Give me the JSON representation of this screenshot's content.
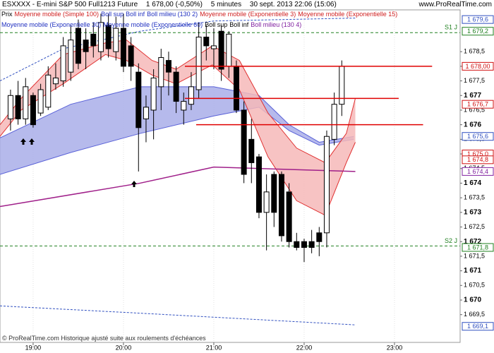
{
  "chart_data": {
    "type": "candlestick",
    "header": {
      "instrument": "ESXXXX - E-mini S&P 500 Full1213 Future",
      "price": "1 678,00 (-0,50%)",
      "timeframe": "5 minutes",
      "timestamp": "30 sept. 2013 22:06 (15:06)",
      "site": "www.ProRealTime.com"
    },
    "footer": "© ProRealTime.com Historique ajusté suite aux roulements d'échéances",
    "legend": [
      [
        {
          "text": "Prix",
          "color": "#000000"
        },
        {
          "text": "Moyenne mobile (Simple 100)",
          "color": "#d02020"
        },
        {
          "text": "Boll sup",
          "color": "#2030c0"
        },
        {
          "text": "Boll inf",
          "color": "#2030c0"
        },
        {
          "text": "Boll milieu (130 2)",
          "color": "#2030c0"
        },
        {
          "text": "Moyenne mobile (Exponentielle 3)",
          "color": "#d02020"
        },
        {
          "text": "Moyenne mobile (Exponentielle 15)",
          "color": "#d02020"
        }
      ],
      [
        {
          "text": "Moyenne mobile (Exponentielle 30)",
          "color": "#2030c0"
        },
        {
          "text": "Moyenne mobile (Exponentielle 60)",
          "color": "#2030c0"
        },
        {
          "text": "Boll sup",
          "color": "#000000"
        },
        {
          "text": "Boll inf",
          "color": "#000000"
        },
        {
          "text": "Boll milieu (130 4)",
          "color": "#8020a0"
        }
      ]
    ],
    "xlim": [
      -22,
      283.6
    ],
    "xticks": [
      {
        "value": 0,
        "label": "19:00"
      },
      {
        "value": 60,
        "label": "20:00"
      },
      {
        "value": 120,
        "label": "21:00"
      },
      {
        "value": 180,
        "label": "22:00"
      },
      {
        "value": 240,
        "label": "23:00"
      }
    ],
    "ylim": [
      1668.55,
      1679.93
    ],
    "yticks": [
      {
        "value": 1669.5,
        "label": "1 669,5"
      },
      {
        "value": 1670,
        "label": "1 670"
      },
      {
        "value": 1670.5,
        "label": "1 670,5"
      },
      {
        "value": 1671,
        "label": "1 671"
      },
      {
        "value": 1671.5,
        "label": "1 671,5"
      },
      {
        "value": 1672,
        "label": "1 672"
      },
      {
        "value": 1672.5,
        "label": "1 672,5"
      },
      {
        "value": 1673,
        "label": "1 673"
      },
      {
        "value": 1673.5,
        "label": "1 673,5"
      },
      {
        "value": 1674,
        "label": "1 674"
      },
      {
        "value": 1674.5,
        "label": "1 674,5"
      },
      {
        "value": 1675,
        "label": "1 675"
      },
      {
        "value": 1675.5,
        "label": "1 675,5"
      },
      {
        "value": 1676,
        "label": "1 676"
      },
      {
        "value": 1676.5,
        "label": "1 676,5"
      },
      {
        "value": 1677,
        "label": "1 677"
      },
      {
        "value": 1677.5,
        "label": "1 677,5"
      },
      {
        "value": 1678,
        "label": "1 678"
      },
      {
        "value": 1678.5,
        "label": "1 678,5"
      }
    ],
    "candles": {
      "x": [
        -15,
        -10,
        -5,
        0,
        5,
        10,
        15,
        20,
        25,
        30,
        35,
        40,
        45,
        50,
        55,
        60,
        65,
        70,
        75,
        80,
        85,
        90,
        95,
        100,
        105,
        110,
        115,
        120,
        125,
        130,
        135,
        140,
        145,
        150,
        155,
        160,
        165,
        170,
        175,
        180,
        185,
        190,
        195,
        200,
        205
      ],
      "open": [
        1676.2,
        1677.0,
        1676.2,
        1677.0,
        1676.4,
        1676.6,
        1677.4,
        1677.5,
        1677.8,
        1679.3,
        1678.9,
        1679.1,
        1678.5,
        1679.4,
        1678.5,
        1679.3,
        1678.7,
        1677.8,
        1676.2,
        1676.5,
        1677.3,
        1678.2,
        1677.8,
        1676.5,
        1676.7,
        1677.2,
        1679.0,
        1678.6,
        1679.2,
        1678.0,
        1678.0,
        1676.5,
        1675.5,
        1674.9,
        1673.0,
        1674.3,
        1674.3,
        1673.7,
        1672.0,
        1672.0,
        1672.0,
        1672.3,
        1672.3,
        1675.5,
        1676.7
      ],
      "high": [
        1677.2,
        1677.5,
        1677.6,
        1677.1,
        1677.4,
        1678.0,
        1678.1,
        1679.0,
        1679.4,
        1679.6,
        1679.3,
        1679.5,
        1679.8,
        1679.8,
        1679.7,
        1679.8,
        1679.0,
        1678.1,
        1677.0,
        1677.9,
        1678.6,
        1678.5,
        1678.0,
        1677.1,
        1677.8,
        1679.5,
        1679.4,
        1679.3,
        1679.4,
        1679.2,
        1678.2,
        1676.8,
        1676.2,
        1675.0,
        1674.3,
        1674.4,
        1674.4,
        1674.0,
        1672.3,
        1672.1,
        1672.4,
        1672.5,
        1675.8,
        1677.1,
        1678.2
      ],
      "low": [
        1675.8,
        1676.0,
        1676.0,
        1675.9,
        1676.3,
        1676.5,
        1677.2,
        1677.3,
        1677.5,
        1677.9,
        1677.9,
        1678.3,
        1678.2,
        1678.3,
        1678.2,
        1677.8,
        1677.5,
        1674.4,
        1675.4,
        1675.5,
        1676.5,
        1677.0,
        1676.4,
        1676.0,
        1676.5,
        1676.9,
        1678.2,
        1677.9,
        1677.5,
        1677.6,
        1676.4,
        1674.0,
        1674.0,
        1672.8,
        1671.7,
        1672.5,
        1672.0,
        1671.8,
        1671.7,
        1671.3,
        1671.6,
        1671.5,
        1671.8,
        1675.3,
        1676.3
      ],
      "close": [
        1677.0,
        1676.2,
        1677.3,
        1676.0,
        1677.2,
        1677.7,
        1677.6,
        1678.7,
        1678.9,
        1678.1,
        1678.5,
        1678.7,
        1679.5,
        1678.6,
        1679.3,
        1678.0,
        1678.0,
        1675.9,
        1676.6,
        1677.6,
        1678.3,
        1677.8,
        1676.8,
        1676.8,
        1677.3,
        1679.0,
        1678.7,
        1678.7,
        1677.9,
        1679.1,
        1676.5,
        1674.3,
        1674.7,
        1673.0,
        1673.7,
        1673.0,
        1672.2,
        1672.0,
        1671.8,
        1671.8,
        1671.8,
        1672.0,
        1675.6,
        1676.7,
        1678.0
      ]
    },
    "bands": [
      {
        "color": "#5a62d8",
        "fill": "#a9aee9",
        "x": [
          -22,
          25,
          71,
          120,
          150,
          170,
          190,
          213
        ],
        "upper": [
          1675.55,
          1676.7,
          1677.3,
          1677.3,
          1677.0,
          1676.0,
          1675.4,
          1675.6
        ],
        "lower": [
          1674.3,
          1675.05,
          1675.7,
          1676.3,
          1676.6,
          1675.8,
          1675.3,
          1675.5
        ]
      },
      {
        "color": "#e03030",
        "fill": "#f6b9b9",
        "x": [
          -22,
          -8,
          20,
          48,
          62,
          79,
          95,
          119,
          137,
          156,
          175,
          194,
          208,
          214
        ],
        "upper": [
          1676.0,
          1676.9,
          1678.4,
          1678.8,
          1678.9,
          1678.2,
          1677.9,
          1678.7,
          1678.2,
          1676.4,
          1675.2,
          1674.7,
          1675.7,
          1676.9
        ],
        "lower": [
          1675.6,
          1676.5,
          1677.4,
          1678.4,
          1678.2,
          1677.7,
          1677.4,
          1678.05,
          1677.2,
          1674.9,
          1673.4,
          1672.9,
          1674.7,
          1675.4
        ]
      }
    ],
    "lines": [
      {
        "color": "#a0208a",
        "dash": false,
        "x": [
          -22,
          71,
          120,
          214
        ],
        "values": [
          1673.2,
          1674.0,
          1674.55,
          1674.4
        ]
      },
      {
        "color": "#3050c0",
        "dash": true,
        "x": [
          -22,
          20,
          71,
          120,
          214
        ],
        "values": [
          1677.5,
          1678.6,
          1679.2,
          1679.55,
          1679.65
        ]
      },
      {
        "color": "#3050c0",
        "dash": true,
        "x": [
          -22,
          71,
          214
        ],
        "values": [
          1669.8,
          1669.55,
          1669.15
        ]
      }
    ],
    "levels": [
      {
        "value": 1678.0,
        "x_start": 100.8,
        "x_end": 265
      },
      {
        "value": 1676.9,
        "x_start": 100.8,
        "x_end": 242.8
      },
      {
        "value": 1676.0,
        "x_start": 108.3,
        "x_end": 259
      }
    ],
    "supports": [
      {
        "value": 1679.15,
        "label": "S1 J"
      },
      {
        "value": 1671.85,
        "label": "S2 J"
      }
    ],
    "price_boxes": [
      {
        "value": 1679.6,
        "label": "1 679,6",
        "color": "#3050c0"
      },
      {
        "value": 1679.2,
        "label": "1 679,2",
        "color": "#208020"
      },
      {
        "value": 1678.0,
        "label": "1 678,00",
        "color": "#d01010"
      },
      {
        "value": 1676.7,
        "label": "1 676,7",
        "color": "#d01010"
      },
      {
        "value": 1675.6,
        "label": "1 675,6",
        "color": "#3050c0"
      },
      {
        "value": 1675.0,
        "label": "1 675,0",
        "color": "#d01010"
      },
      {
        "value": 1674.8,
        "label": "1 674,8",
        "color": "#d01010"
      },
      {
        "value": 1674.4,
        "label": "1 674,4",
        "color": "#8020a0"
      },
      {
        "value": 1671.8,
        "label": "1 671,8",
        "color": "#208020"
      },
      {
        "value": 1669.1,
        "label": "1 669,1",
        "color": "#3050c0"
      }
    ]
  }
}
